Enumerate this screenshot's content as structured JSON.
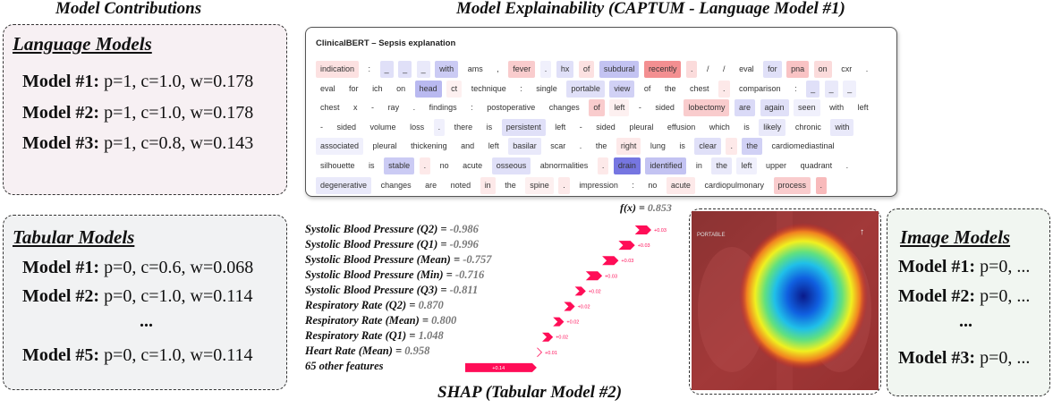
{
  "headings": {
    "contributions": "Model Contributions",
    "explainability": "Model Explainability (CAPTUM - Language Model #1)",
    "shap": "SHAP (Tabular Model #2)"
  },
  "language_models": {
    "title": "Language Models",
    "rows": [
      {
        "label": "Model #1:",
        "params": "p=1, c=1.0, w=0.178"
      },
      {
        "label": "Model #2:",
        "params": "p=1, c=1.0, w=0.178"
      },
      {
        "label": "Model #3:",
        "params": "p=1, c=0.8, w=0.143"
      }
    ]
  },
  "tabular_models": {
    "title": "Tabular Models",
    "rows": [
      {
        "label": "Model #1:",
        "params": "p=0, c=0.6, w=0.068"
      },
      {
        "label": "Model #2:",
        "params": "p=0, c=1.0, w=0.114"
      },
      {
        "label": "Model #5:",
        "params": "p=0, c=1.0, w=0.114"
      }
    ],
    "ellipsis": "..."
  },
  "image_models": {
    "title": "Image Models",
    "rows": [
      {
        "label": "Model #1:",
        "params": "p=0, ..."
      },
      {
        "label": "Model #2:",
        "params": "p=0, ..."
      },
      {
        "label": "Model #3:",
        "params": "p=0, ..."
      }
    ],
    "ellipsis": "..."
  },
  "captum": {
    "title": "ClinicalBERT – Sepsis explanation",
    "tokens": [
      [
        "indication",
        0.2
      ],
      [
        ":",
        0
      ],
      [
        "_",
        -0.2
      ],
      [
        "_",
        -0.2
      ],
      [
        "_",
        -0.15
      ],
      [
        "with",
        -0.35
      ],
      [
        "ams",
        0
      ],
      [
        ",",
        0
      ],
      [
        "fever",
        0.35
      ],
      [
        ".",
        -0.1
      ],
      [
        "hx",
        -0.2
      ],
      [
        "of",
        0.2
      ],
      [
        "subdural",
        -0.4
      ],
      [
        "recently",
        0.75
      ],
      [
        ".",
        0.25
      ],
      [
        "/",
        0
      ],
      [
        "/",
        0
      ],
      [
        "eval",
        0
      ],
      [
        "for",
        -0.2
      ],
      [
        "pna",
        0.4
      ],
      [
        "on",
        0.25
      ],
      [
        "cxr",
        0
      ],
      [
        ".",
        0
      ],
      [
        "eval",
        0
      ],
      [
        "for",
        0
      ],
      [
        "ich",
        0
      ],
      [
        "on",
        0
      ],
      [
        "head",
        -0.45
      ],
      [
        "ct",
        0.1
      ],
      [
        "technique",
        0
      ],
      [
        ":",
        0
      ],
      [
        "single",
        0
      ],
      [
        "portable",
        -0.2
      ],
      [
        "view",
        -0.3
      ],
      [
        "of",
        0
      ],
      [
        "the",
        0
      ],
      [
        "chest",
        0
      ],
      [
        ".",
        0.15
      ],
      [
        "comparison",
        0
      ],
      [
        ":",
        0
      ],
      [
        "_",
        -0.2
      ],
      [
        "_",
        -0.15
      ],
      [
        "_",
        -0.1
      ],
      [
        "chest",
        0
      ],
      [
        "x",
        0
      ],
      [
        "-",
        0
      ],
      [
        "ray",
        0
      ],
      [
        ".",
        0
      ],
      [
        "findings",
        0
      ],
      [
        ":",
        0
      ],
      [
        "postoperative",
        0
      ],
      [
        "changes",
        0
      ],
      [
        "of",
        0.35
      ],
      [
        "left",
        0.1
      ],
      [
        "-",
        0
      ],
      [
        "sided",
        0
      ],
      [
        "lobectomy",
        0.35
      ],
      [
        "are",
        -0.25
      ],
      [
        "again",
        -0.2
      ],
      [
        "seen",
        -0.1
      ],
      [
        "with",
        0
      ],
      [
        "left",
        0
      ],
      [
        "-",
        0
      ],
      [
        "sided",
        0
      ],
      [
        "volume",
        0
      ],
      [
        "loss",
        0
      ],
      [
        ".",
        -0.1
      ],
      [
        "there",
        0
      ],
      [
        "is",
        0
      ],
      [
        "persistent",
        -0.2
      ],
      [
        "left",
        0
      ],
      [
        "-",
        0
      ],
      [
        "sided",
        0
      ],
      [
        "pleural",
        0
      ],
      [
        "effusion",
        0
      ],
      [
        "which",
        0
      ],
      [
        "is",
        0
      ],
      [
        "likely",
        -0.15
      ],
      [
        "chronic",
        0
      ],
      [
        "with",
        -0.15
      ],
      [
        "associated",
        -0.1
      ],
      [
        "pleural",
        0
      ],
      [
        "thickening",
        0
      ],
      [
        "and",
        0
      ],
      [
        "left",
        0
      ],
      [
        "basilar",
        -0.15
      ],
      [
        "scar",
        0
      ],
      [
        ".",
        0
      ],
      [
        "the",
        0
      ],
      [
        "right",
        0.15
      ],
      [
        "lung",
        0
      ],
      [
        "is",
        0
      ],
      [
        "clear",
        -0.2
      ],
      [
        ".",
        0.15
      ],
      [
        "the",
        -0.3
      ],
      [
        "cardiomediastinal",
        0
      ],
      [
        "silhouette",
        0
      ],
      [
        "is",
        0
      ],
      [
        "stable",
        -0.35
      ],
      [
        ".",
        0.15
      ],
      [
        "no",
        0
      ],
      [
        "acute",
        0
      ],
      [
        "osseous",
        -0.2
      ],
      [
        "abnormalities",
        0
      ],
      [
        ".",
        0.15
      ],
      [
        "drain",
        -0.9
      ],
      [
        "identified",
        -0.4
      ],
      [
        "in",
        0
      ],
      [
        "the",
        -0.15
      ],
      [
        "left",
        -0.1
      ],
      [
        "upper",
        0
      ],
      [
        "quadrant",
        0
      ],
      [
        ".",
        0
      ],
      [
        "degenerative",
        -0.15
      ],
      [
        "changes",
        0
      ],
      [
        "are",
        0
      ],
      [
        "noted",
        0
      ],
      [
        "in",
        0.15
      ],
      [
        "the",
        0
      ],
      [
        "spine",
        0.1
      ],
      [
        ".",
        0.15
      ],
      [
        "impression",
        0
      ],
      [
        ":",
        0
      ],
      [
        "no",
        0
      ],
      [
        "acute",
        0.15
      ],
      [
        "cardiopulmonary",
        0
      ],
      [
        "process",
        0.35
      ],
      [
        ".",
        0.45
      ]
    ]
  },
  "shap": {
    "fx_label": "f(x) = ",
    "fx_value": "0.853",
    "features": [
      {
        "name": "Systolic Blood Pressure (Q2) = ",
        "value": "-0.986",
        "contribution": 0.03,
        "label": "+0.03"
      },
      {
        "name": "Systolic Blood Pressure (Q1) = ",
        "value": "-0.996",
        "contribution": 0.03,
        "label": "+0.03"
      },
      {
        "name": "Systolic Blood Pressure (Mean) = ",
        "value": "-0.757",
        "contribution": 0.03,
        "label": "+0.03"
      },
      {
        "name": "Systolic Blood Pressure (Min) = ",
        "value": "-0.716",
        "contribution": 0.03,
        "label": "+0.03"
      },
      {
        "name": "Systolic Blood Pressure (Q3) = ",
        "value": "-0.811",
        "contribution": 0.02,
        "label": "+0.02"
      },
      {
        "name": "Respiratory Rate (Q2) = ",
        "value": "0.870",
        "contribution": 0.02,
        "label": "+0.02"
      },
      {
        "name": "Respiratory Rate (Mean) = ",
        "value": "0.800",
        "contribution": 0.02,
        "label": "+0.02"
      },
      {
        "name": "Respiratory Rate (Q1) = ",
        "value": "1.048",
        "contribution": 0.02,
        "label": "+0.02"
      },
      {
        "name": "Heart Rate (Mean) = ",
        "value": "0.958",
        "contribution": 0.01,
        "label": "+0.01"
      },
      {
        "name": "65 other features",
        "value": "",
        "contribution": 0.14,
        "label": "+0.14"
      }
    ]
  },
  "xray": {
    "overlay_text": "PORTABLE"
  },
  "colors": {
    "positive": "#ff0d57",
    "token_positive": "#e8282c",
    "token_negative": "#2626d0"
  }
}
